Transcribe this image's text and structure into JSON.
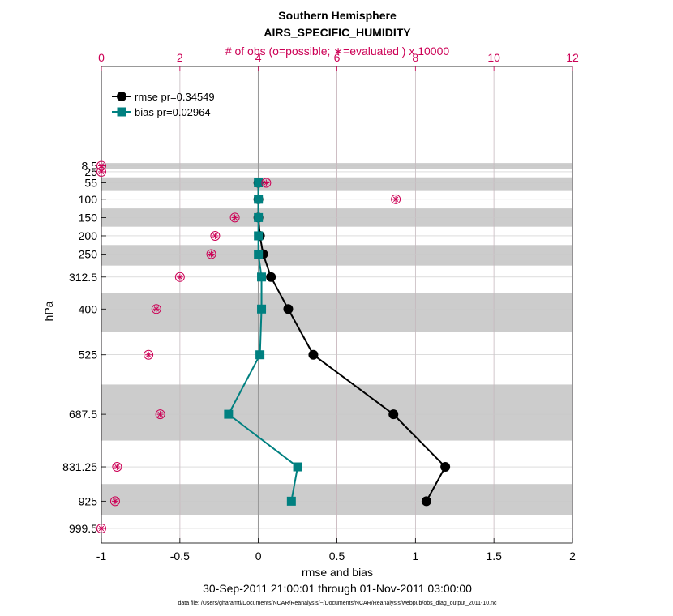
{
  "chart_data": {
    "type": "line",
    "title": "Southern Hemisphere",
    "subtitle": "AIRS_SPECIFIC_HUMIDITY",
    "top_axis_label": "# of obs (o=possible; ∗=evaluated ) x 10000",
    "xlabel": "rmse and bias",
    "ylabel": "hPa",
    "time_range": "30-Sep-2011 21:00:01 through 01-Nov-2011 03:00:00",
    "footnote": "data file: /Users/gharamti/Documents/NCAR/Reanalysis/~/Documents/NCAR/Reanalysis/webpub/obs_diag_output_2011-10.nc",
    "xlim": [
      -1,
      2
    ],
    "xticks": [
      -1,
      -0.5,
      0,
      0.5,
      1,
      1.5,
      2
    ],
    "xtick_labels": [
      "-1",
      "-0.5",
      "0",
      "0.5",
      "1",
      "1.5",
      "2"
    ],
    "top_xlim": [
      0,
      12
    ],
    "top_xticks": [
      0,
      2,
      4,
      6,
      8,
      10,
      12
    ],
    "top_xtick_labels": [
      "0",
      "2",
      "4",
      "6",
      "8",
      "10",
      "12"
    ],
    "levels": [
      8.5,
      25,
      55,
      100,
      150,
      200,
      250,
      312.5,
      400,
      525,
      687.5,
      831.25,
      925,
      999.5
    ],
    "level_labels": [
      "8.5",
      "25",
      "55",
      "100",
      "150",
      "200",
      "250",
      "312.5",
      "400",
      "525",
      "687.5",
      "831.25",
      "925",
      "999.5"
    ],
    "series": [
      {
        "name": "rmse pr=0.34549",
        "color": "#000000",
        "marker": "circle",
        "values": [
          null,
          null,
          0.0,
          0.0,
          0.0,
          0.01,
          0.03,
          0.08,
          0.19,
          0.35,
          0.86,
          1.19,
          1.07,
          null
        ]
      },
      {
        "name": "bias pr=0.02964",
        "color": "#008080",
        "marker": "square",
        "values": [
          null,
          null,
          0.0,
          0.0,
          0.0,
          0.0,
          0.0,
          0.02,
          0.02,
          0.01,
          -0.19,
          0.25,
          0.21,
          null
        ]
      }
    ],
    "obs_count_x10000": [
      0.0,
      0.0,
      4.2,
      7.5,
      3.4,
      2.9,
      2.8,
      2.0,
      1.4,
      1.2,
      1.5,
      0.4,
      0.35,
      0.0
    ],
    "obs_color": "#cc0055",
    "band_color": "#cccccc",
    "legend_position": "top-left",
    "grid": true
  }
}
